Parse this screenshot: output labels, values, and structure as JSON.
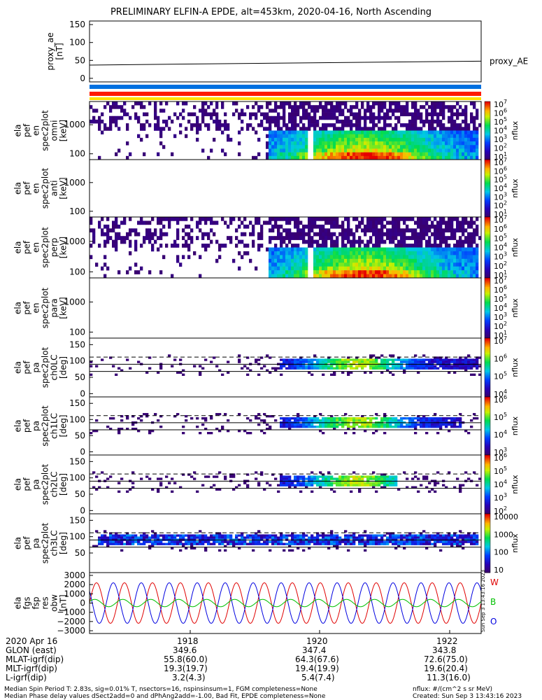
{
  "title": "PRELIMINARY ELFIN-A EPDE, alt=453km, 2020-04-16, North Ascending",
  "colors": {
    "blue": "#0070e0",
    "red": "#ff1a00",
    "yellow": "#ffe000",
    "trace_red": "#e00000",
    "trace_blue": "#0000e0",
    "trace_green": "#00c000"
  },
  "panels": [
    {
      "id": "proxy_ae",
      "ylabel": [
        "proxy_ae",
        "[nT]"
      ],
      "ticks": [
        "150",
        "100",
        "50",
        "0"
      ],
      "legend": "proxy_AE"
    },
    {
      "id": "en_spec_omni",
      "ylabel": [
        "ela",
        "pef",
        "en",
        "spec2plot",
        "omni",
        "[keV]"
      ],
      "ticks": [
        "1000",
        "100"
      ],
      "colorbar_label": "nflux",
      "colorbar_ticks": [
        "10^7",
        "10^6",
        "10^5",
        "10^4",
        "10^3",
        "10^2",
        "10^1"
      ]
    },
    {
      "id": "en_spec_anti",
      "ylabel": [
        "ela",
        "pef",
        "en",
        "spec2plot",
        "anti",
        "[keV]"
      ],
      "ticks": [
        "1000",
        "100"
      ],
      "colorbar_label": "nflux",
      "colorbar_ticks": [
        "10^7",
        "10^6",
        "10^5",
        "10^4",
        "10^3",
        "10^2",
        "10^1"
      ]
    },
    {
      "id": "en_spec_perp",
      "ylabel": [
        "ela",
        "pef",
        "en",
        "spec2plot",
        "perp",
        "[keV]"
      ],
      "ticks": [
        "1000",
        "100"
      ],
      "colorbar_label": "nflux",
      "colorbar_ticks": [
        "10^7",
        "10^6",
        "10^5",
        "10^4",
        "10^3",
        "10^2",
        "10^1"
      ]
    },
    {
      "id": "en_spec_para",
      "ylabel": [
        "ela",
        "pef",
        "en",
        "spec2plot",
        "para",
        "[keV]"
      ],
      "ticks": [
        "1000",
        "100"
      ],
      "colorbar_label": "nflux",
      "colorbar_ticks": [
        "10^7",
        "10^6",
        "10^5",
        "10^4",
        "10^3",
        "10^2",
        "10^1"
      ]
    },
    {
      "id": "pa_ch0",
      "ylabel": [
        "ela",
        "pef",
        "pa",
        "spec2plot",
        "ch0LC",
        "[deg]"
      ],
      "ticks": [
        "150",
        "100",
        "50",
        "0"
      ],
      "colorbar_label": "nflux",
      "colorbar_ticks": [
        "10^7",
        "10^6",
        "10^5",
        "10^4"
      ]
    },
    {
      "id": "pa_ch1",
      "ylabel": [
        "ela",
        "pef",
        "pa",
        "spec2plot",
        "ch1LC",
        "[deg]"
      ],
      "ticks": [
        "150",
        "100",
        "50",
        "0"
      ],
      "colorbar_label": "nflux",
      "colorbar_ticks": [
        "10^6",
        "10^5",
        "10^4",
        "10^3"
      ]
    },
    {
      "id": "pa_ch2",
      "ylabel": [
        "ela",
        "pef",
        "pa",
        "spec2plot",
        "ch2LC",
        "[deg]"
      ],
      "ticks": [
        "150",
        "100",
        "50",
        "0"
      ],
      "colorbar_label": "nflux",
      "colorbar_ticks": [
        "10^6",
        "10^5",
        "10^4",
        "10^3",
        "10^2"
      ]
    },
    {
      "id": "pa_ch3",
      "ylabel": [
        "ela",
        "pef",
        "pa",
        "spec2plot",
        "ch3LC",
        "[deg]"
      ],
      "ticks": [
        "150",
        "100",
        "50"
      ],
      "colorbar_label": "nflux",
      "colorbar_ticks": [
        "10000",
        "1000",
        "100",
        "10"
      ]
    },
    {
      "id": "fgs",
      "ylabel": [
        "ela",
        "fgs",
        "fsp",
        "res",
        "obw",
        "[nT]"
      ],
      "ticks": [
        "3000",
        "2000",
        "1000",
        "0",
        "−1000",
        "−2000",
        "−3000"
      ],
      "legend": [
        "W",
        "B",
        "O"
      ],
      "side_stamp": "Sun Sep  3 13:43:16 2023"
    }
  ],
  "chart_data": [
    {
      "type": "line",
      "panel": "proxy_ae",
      "series": [
        {
          "name": "proxy_AE",
          "x": [
            0,
            1
          ],
          "values": [
            37,
            48
          ]
        }
      ],
      "ylim": [
        -10,
        160
      ]
    },
    {
      "type": "heatmap",
      "panel": "en_spec_omni",
      "ylim_keV": [
        60,
        6000
      ],
      "scale": "log",
      "note_visible": "activity between 1919 and 1922"
    },
    {
      "type": "line",
      "panel": "fgs",
      "series": [
        {
          "name": "W",
          "amplitude": 2200
        },
        {
          "name": "O",
          "amplitude": 2200
        },
        {
          "name": "B",
          "amplitude": 400
        }
      ],
      "ylim": [
        -3300,
        3300
      ]
    }
  ],
  "ephemeris": {
    "rows": [
      {
        "label": "2020 Apr 16",
        "values": [
          "1918",
          "1920",
          "1922"
        ]
      },
      {
        "label": "GLON (east)",
        "values": [
          "349.6",
          "347.4",
          "343.8"
        ]
      },
      {
        "label": "MLAT-igrf(dip)",
        "values": [
          "55.8(60.0)",
          "64.3(67.6)",
          "72.6(75.0)"
        ]
      },
      {
        "label": "MLT-igrf(dip)",
        "values": [
          "19.3(19.7)",
          "19.4(19.9)",
          "19.6(20.4)"
        ]
      },
      {
        "label": "L-igrf(dip)",
        "values": [
          "3.2(4.3)",
          "5.4(7.4)",
          "11.3(16.0)"
        ]
      }
    ]
  },
  "footer": {
    "line1": "Median Spin Period T: 2.83s, sig=0.01% T, nsectors=16, nspinsinsum=1, FGM completeness=None",
    "line2": "Median Phase delay values dSect2add=0 and dPhAng2add=-1.00, Bad Fit, EPDE completeness=None",
    "right1": "nflux: #/(cm^2 s sr MeV)",
    "right2": "Created: Sun Sep  3 13:43:16 2023"
  }
}
